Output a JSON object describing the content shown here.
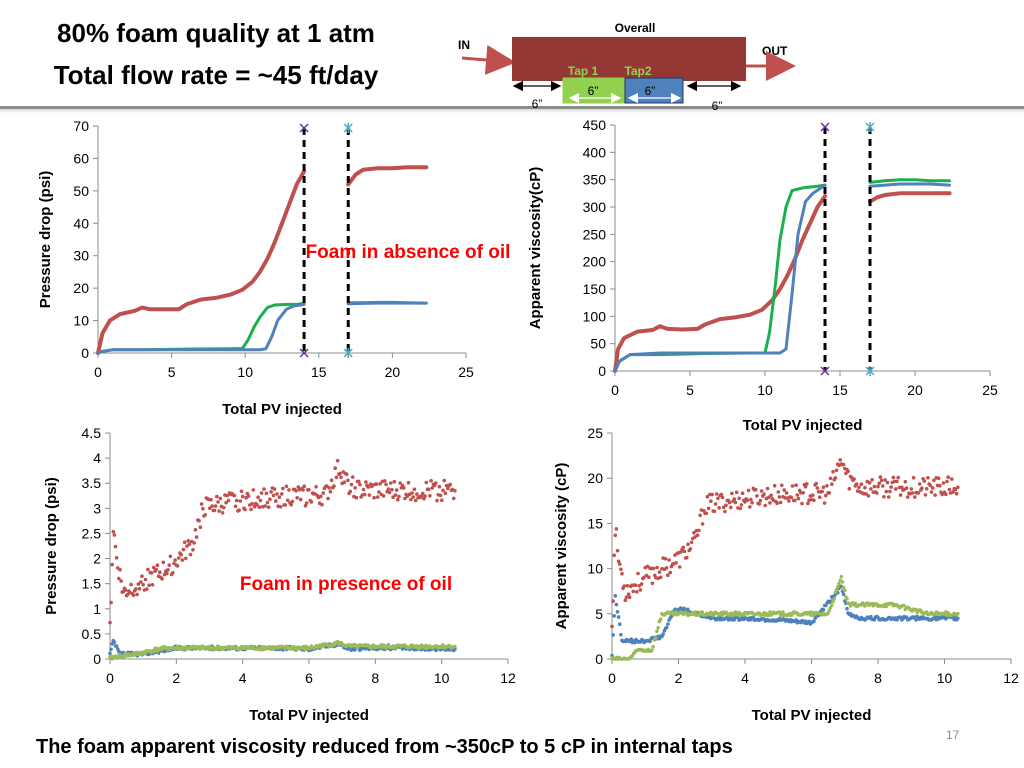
{
  "slide": {
    "title_line1": "80% foam quality  at 1 atm",
    "title_line2": "Total flow rate = ~45 ft/day",
    "footer": "The foam apparent viscosity reduced from ~350cP to 5 cP in internal taps",
    "slide_number": "17"
  },
  "diagram": {
    "overall_label": "Overall",
    "in_label": "IN",
    "out_label": "OUT",
    "tap1_label": "Tap 1",
    "tap2_label": "Tap2",
    "len_left": "6”",
    "len_tap1": "6”",
    "len_tap2": "6”",
    "len_right": "6”",
    "colors": {
      "core": "#953735",
      "tap1": "#92d050",
      "tap2": "#4f81bd",
      "arrow": "#c0504d"
    }
  },
  "colors": {
    "overall": "#c0504d",
    "tap1": "#1bb04b",
    "tap2": "#4f81bd",
    "tap1_oil": "#9bbb59",
    "dashed": "#000000",
    "label_red": "#ff0000"
  },
  "chart_data": [
    {
      "type": "line",
      "xlabel": "Total PV injected",
      "ylabel": "Pressure drop (psi)",
      "xlim": [
        0,
        25
      ],
      "ylim": [
        0,
        70
      ],
      "xticks": [
        0,
        5,
        10,
        15,
        20,
        25
      ],
      "yticks": [
        0,
        10,
        20,
        30,
        40,
        50,
        60,
        70
      ],
      "annotation": "Foam in absence of oil",
      "vlines": [
        14,
        17
      ],
      "series": [
        {
          "key": "overall",
          "points": [
            [
              0,
              0
            ],
            [
              0.3,
              6
            ],
            [
              0.8,
              10
            ],
            [
              1.5,
              12
            ],
            [
              2.5,
              13
            ],
            [
              3,
              14
            ],
            [
              3.5,
              13.5
            ],
            [
              4.5,
              13.5
            ],
            [
              5.5,
              13.5
            ],
            [
              6,
              15
            ],
            [
              7,
              16.5
            ],
            [
              8,
              17
            ],
            [
              9,
              18
            ],
            [
              9.8,
              19.5
            ],
            [
              10.5,
              22
            ],
            [
              11,
              25
            ],
            [
              11.5,
              29
            ],
            [
              12,
              34
            ],
            [
              12.5,
              40
            ],
            [
              13,
              46
            ],
            [
              13.5,
              52
            ],
            [
              14,
              56
            ]
          ]
        },
        {
          "key": "overall",
          "points": [
            [
              17,
              52
            ],
            [
              17.5,
              55
            ],
            [
              18,
              56.5
            ],
            [
              19,
              57
            ],
            [
              20,
              57
            ],
            [
              21,
              57.3
            ],
            [
              22.3,
              57.3
            ]
          ]
        },
        {
          "key": "tap1",
          "points": [
            [
              0,
              0
            ],
            [
              0.3,
              0.5
            ],
            [
              1,
              1
            ],
            [
              3,
              1
            ],
            [
              6,
              1.2
            ],
            [
              9,
              1.3
            ],
            [
              9.8,
              1.4
            ],
            [
              10.2,
              4
            ],
            [
              10.6,
              8
            ],
            [
              11,
              11
            ],
            [
              11.5,
              14
            ],
            [
              12,
              14.8
            ],
            [
              12.8,
              15
            ],
            [
              13.5,
              15
            ],
            [
              14,
              15.3
            ]
          ]
        },
        {
          "key": "tap1",
          "points": [
            [
              17,
              15.5
            ],
            [
              18,
              15.5
            ],
            [
              19,
              15.6
            ],
            [
              20,
              15.6
            ],
            [
              21,
              15.5
            ],
            [
              22.3,
              15.4
            ]
          ]
        },
        {
          "key": "tap2",
          "points": [
            [
              0,
              0
            ],
            [
              0.3,
              0.5
            ],
            [
              1,
              1
            ],
            [
              3,
              1
            ],
            [
              6,
              1
            ],
            [
              9,
              1
            ],
            [
              11,
              1
            ],
            [
              11.4,
              1.3
            ],
            [
              11.8,
              5
            ],
            [
              12.2,
              10
            ],
            [
              12.8,
              13.5
            ],
            [
              13.3,
              14.5
            ],
            [
              14,
              15
            ]
          ]
        },
        {
          "key": "tap2",
          "points": [
            [
              17,
              15.2
            ],
            [
              18,
              15.3
            ],
            [
              19,
              15.4
            ],
            [
              20,
              15.4
            ],
            [
              21,
              15.4
            ],
            [
              22.3,
              15.4
            ]
          ]
        }
      ]
    },
    {
      "type": "line",
      "xlabel": "Total PV injected",
      "ylabel": "Apparent viscosity(cP)",
      "xlim": [
        0,
        25
      ],
      "ylim": [
        0,
        450
      ],
      "xticks": [
        0,
        5,
        10,
        15,
        20,
        25
      ],
      "yticks": [
        0,
        50,
        100,
        150,
        200,
        250,
        300,
        350,
        400,
        450
      ],
      "vlines": [
        14,
        17
      ],
      "series": [
        {
          "key": "overall",
          "points": [
            [
              0,
              0
            ],
            [
              0.2,
              40
            ],
            [
              0.6,
              60
            ],
            [
              1.5,
              72
            ],
            [
              2.5,
              75
            ],
            [
              3,
              82
            ],
            [
              3.5,
              77
            ],
            [
              4.5,
              76
            ],
            [
              5.5,
              77
            ],
            [
              6,
              85
            ],
            [
              7,
              95
            ],
            [
              8,
              98
            ],
            [
              9,
              103
            ],
            [
              9.8,
              112
            ],
            [
              10.5,
              130
            ],
            [
              11,
              150
            ],
            [
              11.5,
              175
            ],
            [
              12,
              205
            ],
            [
              12.5,
              240
            ],
            [
              13,
              270
            ],
            [
              13.5,
              300
            ],
            [
              14,
              320
            ]
          ]
        },
        {
          "key": "overall",
          "points": [
            [
              17,
              310
            ],
            [
              17.5,
              318
            ],
            [
              18,
              322
            ],
            [
              19,
              325
            ],
            [
              20,
              325
            ],
            [
              21,
              325
            ],
            [
              22.3,
              325
            ]
          ]
        },
        {
          "key": "tap1",
          "points": [
            [
              0,
              0
            ],
            [
              0.3,
              18
            ],
            [
              1,
              30
            ],
            [
              3,
              30
            ],
            [
              6,
              32
            ],
            [
              9,
              33
            ],
            [
              10,
              33
            ],
            [
              10.3,
              70
            ],
            [
              10.7,
              160
            ],
            [
              11,
              240
            ],
            [
              11.4,
              300
            ],
            [
              11.8,
              330
            ],
            [
              12.5,
              335
            ],
            [
              13.5,
              338
            ],
            [
              14,
              340
            ]
          ]
        },
        {
          "key": "tap1",
          "points": [
            [
              17,
              345
            ],
            [
              18,
              348
            ],
            [
              19,
              350
            ],
            [
              20,
              350
            ],
            [
              21,
              348
            ],
            [
              22.3,
              348
            ]
          ]
        },
        {
          "key": "tap2",
          "points": [
            [
              0,
              0
            ],
            [
              0.3,
              18
            ],
            [
              1,
              30
            ],
            [
              3,
              33
            ],
            [
              6,
              33
            ],
            [
              9,
              33
            ],
            [
              11,
              33
            ],
            [
              11.4,
              40
            ],
            [
              11.8,
              140
            ],
            [
              12.2,
              250
            ],
            [
              12.7,
              310
            ],
            [
              13.2,
              325
            ],
            [
              14,
              340
            ]
          ]
        },
        {
          "key": "tap2",
          "points": [
            [
              17,
              338
            ],
            [
              18,
              340
            ],
            [
              19,
              342
            ],
            [
              20,
              342
            ],
            [
              21,
              342
            ],
            [
              22.3,
              340
            ]
          ]
        }
      ]
    },
    {
      "type": "scatter",
      "xlabel": "Total PV injected",
      "ylabel": "Pressure drop (psi)",
      "xlim": [
        0,
        12
      ],
      "ylim": [
        0,
        4.5
      ],
      "xticks": [
        0,
        2,
        4,
        6,
        8,
        10,
        12
      ],
      "yticks": [
        0,
        0.5,
        1,
        1.5,
        2,
        2.5,
        3,
        3.5,
        4,
        4.5
      ],
      "annotation": "Foam in presence of oil",
      "series": [
        {
          "key": "overall",
          "points": [
            [
              0,
              0.6
            ],
            [
              0.1,
              2.6
            ],
            [
              0.2,
              2.0
            ],
            [
              0.4,
              1.3
            ],
            [
              0.6,
              1.4
            ],
            [
              1,
              1.55
            ],
            [
              1.5,
              1.7
            ],
            [
              2,
              1.95
            ],
            [
              2.5,
              2.3
            ],
            [
              2.8,
              3.0
            ],
            [
              3.5,
              3.1
            ],
            [
              4.5,
              3.2
            ],
            [
              5.5,
              3.25
            ],
            [
              6.5,
              3.25
            ],
            [
              6.9,
              3.8
            ],
            [
              7.1,
              3.55
            ],
            [
              7.5,
              3.35
            ],
            [
              8.5,
              3.35
            ],
            [
              9.5,
              3.35
            ],
            [
              10.4,
              3.35
            ]
          ]
        },
        {
          "key": "tap2",
          "points": [
            [
              0,
              0.1
            ],
            [
              0.1,
              0.35
            ],
            [
              0.3,
              0.1
            ],
            [
              1,
              0.1
            ],
            [
              2,
              0.22
            ],
            [
              3,
              0.22
            ],
            [
              4,
              0.22
            ],
            [
              5,
              0.22
            ],
            [
              6,
              0.2
            ],
            [
              6.9,
              0.3
            ],
            [
              7.2,
              0.2
            ],
            [
              8,
              0.22
            ],
            [
              9,
              0.22
            ],
            [
              10.4,
              0.2
            ]
          ]
        },
        {
          "key": "tap1_oil",
          "points": [
            [
              0,
              0.02
            ],
            [
              0.2,
              0.05
            ],
            [
              0.8,
              0.1
            ],
            [
              1.5,
              0.2
            ],
            [
              2,
              0.22
            ],
            [
              3,
              0.22
            ],
            [
              4,
              0.22
            ],
            [
              5,
              0.22
            ],
            [
              6,
              0.22
            ],
            [
              6.9,
              0.32
            ],
            [
              7.2,
              0.25
            ],
            [
              8,
              0.25
            ],
            [
              9,
              0.25
            ],
            [
              10.4,
              0.25
            ]
          ]
        }
      ]
    },
    {
      "type": "scatter",
      "xlabel": "Total PV injected",
      "ylabel": "Apparent viscosity (cP)",
      "xlim": [
        0,
        12
      ],
      "ylim": [
        0,
        25
      ],
      "xticks": [
        0,
        2,
        4,
        6,
        8,
        10,
        12
      ],
      "yticks": [
        0,
        5,
        10,
        15,
        20,
        25
      ],
      "series": [
        {
          "key": "overall",
          "points": [
            [
              0,
              4
            ],
            [
              0.1,
              14.5
            ],
            [
              0.2,
              11
            ],
            [
              0.4,
              7.5
            ],
            [
              0.6,
              8
            ],
            [
              1,
              9
            ],
            [
              1.5,
              10
            ],
            [
              2,
              11
            ],
            [
              2.5,
              13
            ],
            [
              2.8,
              17
            ],
            [
              3.5,
              17.5
            ],
            [
              4.5,
              18
            ],
            [
              5.5,
              18.3
            ],
            [
              6.5,
              18.3
            ],
            [
              6.9,
              22
            ],
            [
              7.1,
              20
            ],
            [
              7.5,
              19
            ],
            [
              8.5,
              19
            ],
            [
              9.5,
              19
            ],
            [
              10.4,
              19
            ]
          ]
        },
        {
          "key": "tap2",
          "points": [
            [
              0,
              0.5
            ],
            [
              0.1,
              7
            ],
            [
              0.3,
              2
            ],
            [
              1,
              2
            ],
            [
              1.5,
              2.5
            ],
            [
              1.9,
              5.5
            ],
            [
              2.1,
              5.5
            ],
            [
              3,
              4.5
            ],
            [
              4,
              4.5
            ],
            [
              5,
              4.3
            ],
            [
              6,
              4.0
            ],
            [
              6.9,
              8
            ],
            [
              7.1,
              5
            ],
            [
              7.5,
              4.5
            ],
            [
              8.5,
              4.5
            ],
            [
              9.5,
              4.5
            ],
            [
              10.4,
              4.5
            ]
          ]
        },
        {
          "key": "tap1_oil",
          "points": [
            [
              0,
              0
            ],
            [
              0.5,
              0
            ],
            [
              0.8,
              1
            ],
            [
              1.2,
              1
            ],
            [
              1.5,
              5
            ],
            [
              2.5,
              5
            ],
            [
              3.5,
              5
            ],
            [
              4.5,
              5
            ],
            [
              5.5,
              5
            ],
            [
              6.5,
              5
            ],
            [
              6.9,
              9
            ],
            [
              7.1,
              6
            ],
            [
              7.5,
              6
            ],
            [
              8.5,
              6
            ],
            [
              9.5,
              5
            ],
            [
              10.4,
              5
            ]
          ]
        }
      ]
    }
  ]
}
